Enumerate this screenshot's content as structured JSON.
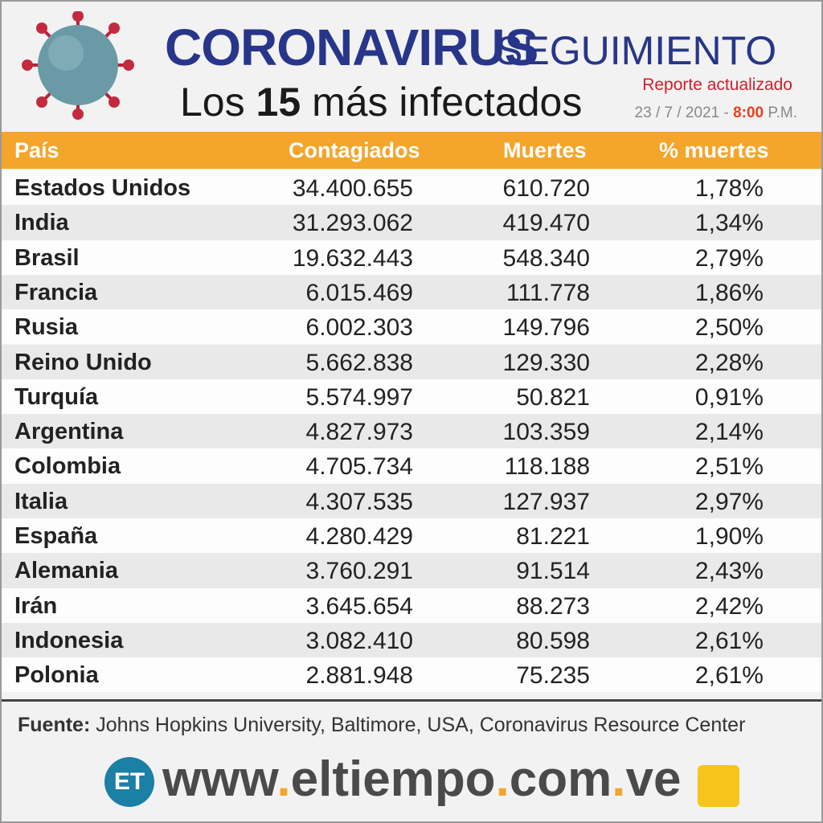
{
  "header": {
    "title": "CORONAVIRUS",
    "title_2": "SEGUIMIENTO",
    "subtitle_1": "Los",
    "subtitle_2": "15",
    "subtitle_3": "más infectados",
    "report": "Reporte actualizado",
    "date": "23 / 7 / 2021 -",
    "time": "8:00",
    "ampm": "P.M."
  },
  "table": {
    "columns": [
      "País",
      "Contagiados",
      "Muertes",
      "% muertes"
    ],
    "rows": [
      [
        "Estados Unidos",
        "34.400.655",
        "610.720",
        "1,78%"
      ],
      [
        "India",
        "31.293.062",
        "419.470",
        "1,34%"
      ],
      [
        "Brasil",
        "19.632.443",
        "548.340",
        "2,79%"
      ],
      [
        "Francia",
        "6.015.469",
        "111.778",
        "1,86%"
      ],
      [
        "Rusia",
        "6.002.303",
        "149.796",
        "2,50%"
      ],
      [
        "Reino Unido",
        "5.662.838",
        "129.330",
        "2,28%"
      ],
      [
        "Turquía",
        "5.574.997",
        "50.821",
        "0,91%"
      ],
      [
        "Argentina",
        "4.827.973",
        "103.359",
        "2,14%"
      ],
      [
        "Colombia",
        "4.705.734",
        "118.188",
        "2,51%"
      ],
      [
        "Italia",
        "4.307.535",
        "127.937",
        "2,97%"
      ],
      [
        "España",
        "4.280.429",
        "81.221",
        "1,90%"
      ],
      [
        "Alemania",
        "3.760.291",
        "91.514",
        "2,43%"
      ],
      [
        "Irán",
        "3.645.654",
        "88.273",
        "2,42%"
      ],
      [
        "Indonesia",
        "3.082.410",
        "80.598",
        "2,61%"
      ],
      [
        "Polonia",
        "2.881.948",
        "75.235",
        "2,61%"
      ]
    ]
  },
  "footer": {
    "source_label": "Fuente:",
    "source": "Johns Hopkins University, Baltimore, USA, Coronavirus Resource Center",
    "logo": "ET",
    "site": [
      "www",
      ".",
      "eltiempo",
      ".",
      "com",
      ".",
      "ve"
    ]
  }
}
